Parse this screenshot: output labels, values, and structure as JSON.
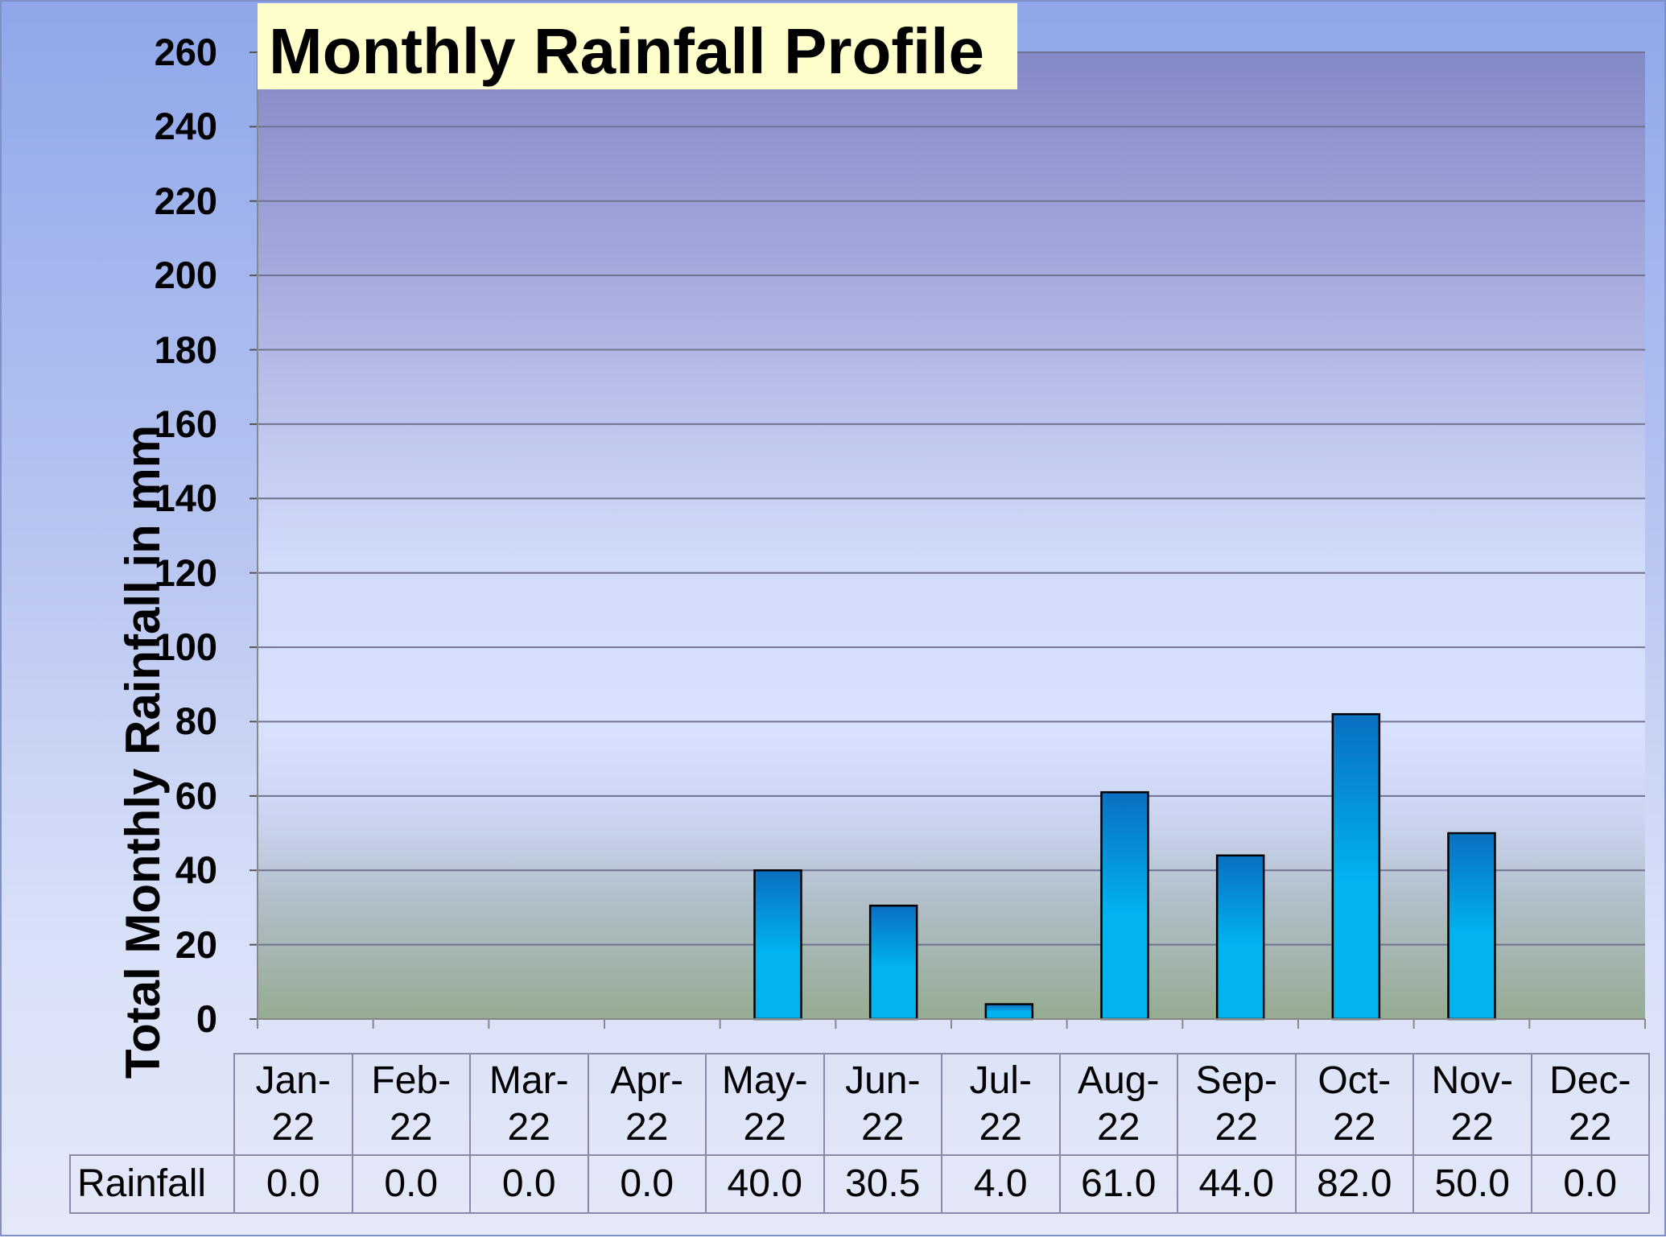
{
  "chart_data": {
    "type": "bar",
    "title": "Monthly Rainfall Profile",
    "ylabel": "Total Monthly Rainfall in mm",
    "xlabel": "",
    "ylim": [
      0,
      260
    ],
    "yticks": [
      0,
      20,
      40,
      60,
      80,
      100,
      120,
      140,
      160,
      180,
      200,
      220,
      240,
      260
    ],
    "grid": true,
    "categories": [
      {
        "top": "Jan-",
        "bottom": "22"
      },
      {
        "top": "Feb-",
        "bottom": "22"
      },
      {
        "top": "Mar-",
        "bottom": "22"
      },
      {
        "top": "Apr-",
        "bottom": "22"
      },
      {
        "top": "May-",
        "bottom": "22"
      },
      {
        "top": "Jun-",
        "bottom": "22"
      },
      {
        "top": "Jul-",
        "bottom": "22"
      },
      {
        "top": "Aug-",
        "bottom": "22"
      },
      {
        "top": "Sep-",
        "bottom": "22"
      },
      {
        "top": "Oct-",
        "bottom": "22"
      },
      {
        "top": "Nov-",
        "bottom": "22"
      },
      {
        "top": "Dec-",
        "bottom": "22"
      }
    ],
    "series": [
      {
        "name": "Rainfall",
        "values": [
          0.0,
          0.0,
          0.0,
          0.0,
          40.0,
          30.5,
          4.0,
          61.0,
          44.0,
          82.0,
          50.0,
          0.0
        ],
        "value_labels": [
          "0.0",
          "0.0",
          "0.0",
          "0.0",
          "40.0",
          "30.5",
          "4.0",
          "61.0",
          "44.0",
          "82.0",
          "50.0",
          "0.0"
        ],
        "color_top": "#0a6fc0",
        "color_bottom": "#00b4f0"
      }
    ],
    "data_table": true
  }
}
